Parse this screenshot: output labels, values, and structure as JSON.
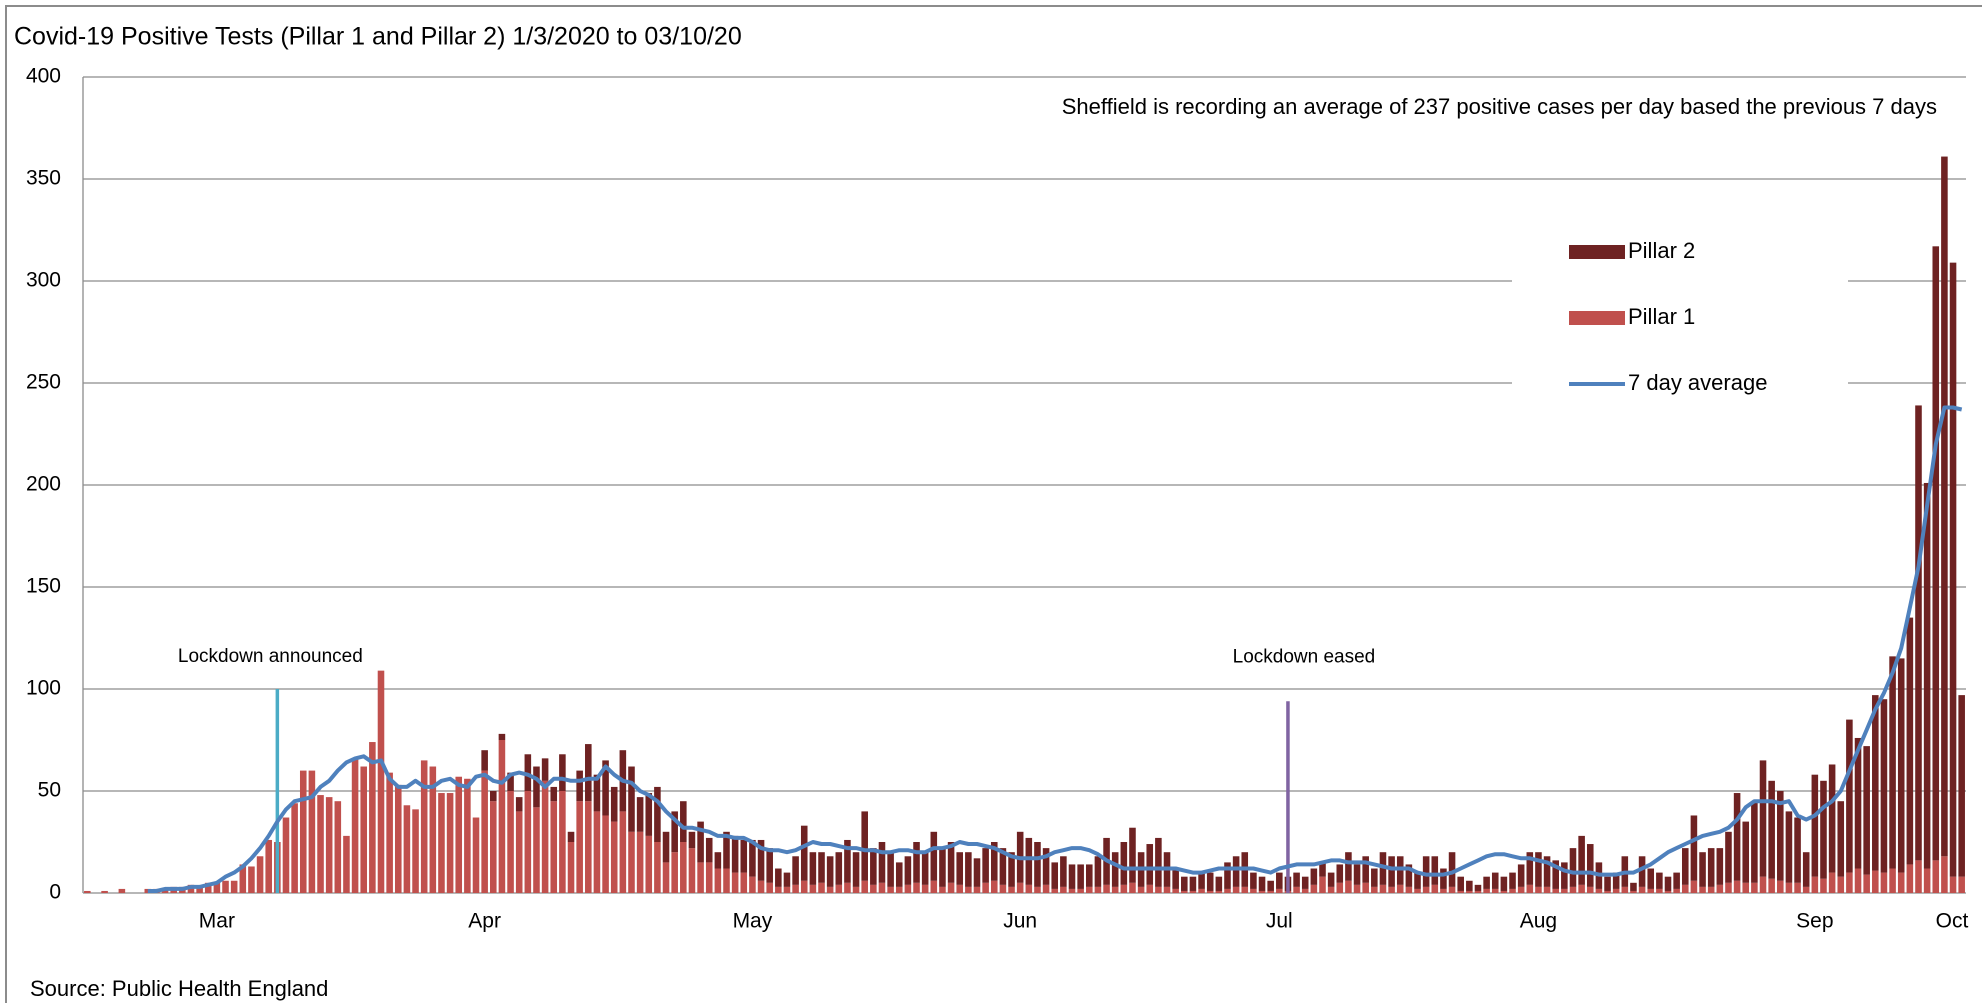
{
  "chart_data": {
    "type": "stacked-bar-line",
    "title": "Covid-19 Positive Tests (Pillar 1 and Pillar 2) 1/3/2020 to 03/10/20",
    "note": "Sheffield is recording an average of 237 positive cases per day based the previous 7 days",
    "source": "Source: Public Health England",
    "ylim": [
      0,
      400
    ],
    "yticks": [
      0,
      50,
      100,
      150,
      200,
      250,
      300,
      350,
      400
    ],
    "grid": true,
    "legend": "upper right",
    "categories": [
      null,
      null,
      null,
      null,
      null,
      null,
      null,
      null,
      null,
      null,
      null,
      null,
      null,
      null,
      null,
      "Mar",
      null,
      null,
      null,
      null,
      null,
      null,
      null,
      null,
      null,
      null,
      null,
      null,
      null,
      null,
      null,
      null,
      null,
      null,
      null,
      null,
      null,
      null,
      null,
      null,
      null,
      null,
      null,
      null,
      null,
      null,
      "Apr",
      null,
      null,
      null,
      null,
      null,
      null,
      null,
      null,
      null,
      null,
      null,
      null,
      null,
      null,
      null,
      null,
      null,
      null,
      null,
      null,
      null,
      null,
      null,
      null,
      null,
      null,
      null,
      null,
      null,
      null,
      "May",
      null,
      null,
      null,
      null,
      null,
      null,
      null,
      null,
      null,
      null,
      null,
      null,
      null,
      null,
      null,
      null,
      null,
      null,
      null,
      null,
      null,
      null,
      null,
      null,
      null,
      null,
      null,
      null,
      null,
      null,
      "Jun",
      null,
      null,
      null,
      null,
      null,
      null,
      null,
      null,
      null,
      null,
      null,
      null,
      null,
      null,
      null,
      null,
      null,
      null,
      null,
      null,
      null,
      null,
      null,
      null,
      null,
      null,
      null,
      null,
      null,
      "Jul",
      null,
      null,
      null,
      null,
      null,
      null,
      null,
      null,
      null,
      null,
      null,
      null,
      null,
      null,
      null,
      null,
      null,
      null,
      null,
      null,
      null,
      null,
      null,
      null,
      null,
      null,
      null,
      null,
      null,
      "Aug",
      null,
      null,
      null,
      null,
      null,
      null,
      null,
      null,
      null,
      null,
      null,
      null,
      null,
      null,
      null,
      null,
      null,
      null,
      null,
      null,
      null,
      null,
      null,
      null,
      null,
      null,
      null,
      null,
      null,
      null,
      null,
      "Sep",
      null,
      null,
      null,
      null,
      null,
      null,
      null,
      null,
      null,
      null,
      null,
      null,
      null,
      null,
      null,
      null,
      "Oct"
    ],
    "series": [
      {
        "name": "Pillar 2",
        "kind": "bar",
        "color": "#6e2222",
        "values": [
          0,
          0,
          0,
          0,
          0,
          0,
          0,
          0,
          0,
          0,
          0,
          0,
          0,
          0,
          0,
          0,
          0,
          0,
          0,
          0,
          0,
          0,
          0,
          0,
          0,
          0,
          0,
          0,
          0,
          0,
          0,
          0,
          0,
          0,
          0,
          0,
          0,
          0,
          0,
          0,
          0,
          0,
          0,
          0,
          0,
          0,
          10,
          5,
          3,
          9,
          7,
          18,
          20,
          11,
          7,
          18,
          5,
          15,
          28,
          18,
          27,
          17,
          30,
          32,
          17,
          21,
          27,
          15,
          20,
          20,
          8,
          20,
          12,
          8,
          18,
          18,
          16,
          18,
          20,
          17,
          9,
          7,
          14,
          27,
          16,
          15,
          15,
          16,
          21,
          17,
          34,
          18,
          20,
          17,
          12,
          14,
          20,
          16,
          24,
          19,
          20,
          16,
          17,
          14,
          17,
          19,
          18,
          17,
          25,
          23,
          22,
          18,
          13,
          15,
          12,
          12,
          11,
          15,
          23,
          17,
          21,
          27,
          17,
          20,
          24,
          17,
          10,
          7,
          7,
          8,
          9,
          7,
          13,
          15,
          17,
          8,
          7,
          5,
          8,
          7,
          7,
          6,
          8,
          7,
          7,
          9,
          14,
          10,
          13,
          9,
          16,
          15,
          14,
          11,
          8,
          15,
          14,
          10,
          17,
          7,
          5,
          3,
          6,
          8,
          7,
          8,
          11,
          16,
          17,
          15,
          14,
          13,
          19,
          24,
          21,
          13,
          7,
          8,
          15,
          4,
          15,
          10,
          8,
          7,
          8,
          18,
          32,
          17,
          19,
          18,
          25,
          43,
          30,
          40,
          57,
          48,
          44,
          35,
          32,
          17,
          50,
          48,
          53,
          37,
          75,
          64,
          63,
          86,
          85,
          104,
          105,
          121,
          223,
          189,
          301,
          343,
          301,
          89
        ]
      },
      {
        "name": "Pillar 1",
        "kind": "bar",
        "color": "#c0504d",
        "values": [
          1,
          0,
          1,
          0,
          2,
          0,
          0,
          2,
          2,
          2,
          3,
          3,
          4,
          3,
          5,
          5,
          6,
          6,
          14,
          13,
          18,
          26,
          25,
          37,
          44,
          60,
          60,
          48,
          47,
          45,
          28,
          66,
          62,
          74,
          109,
          59,
          53,
          43,
          41,
          65,
          62,
          49,
          49,
          57,
          56,
          37,
          60,
          45,
          75,
          50,
          40,
          50,
          42,
          55,
          45,
          50,
          25,
          45,
          45,
          40,
          38,
          35,
          40,
          30,
          30,
          28,
          25,
          15,
          20,
          25,
          22,
          15,
          15,
          12,
          12,
          10,
          10,
          8,
          6,
          5,
          3,
          3,
          4,
          6,
          4,
          5,
          3,
          4,
          5,
          3,
          6,
          4,
          5,
          3,
          3,
          4,
          5,
          4,
          6,
          3,
          5,
          4,
          3,
          3,
          5,
          6,
          4,
          3,
          5,
          4,
          3,
          4,
          2,
          3,
          2,
          2,
          3,
          3,
          4,
          3,
          4,
          5,
          3,
          4,
          3,
          3,
          2,
          1,
          1,
          2,
          1,
          1,
          2,
          3,
          3,
          2,
          1,
          1,
          2,
          1,
          3,
          2,
          4,
          8,
          3,
          5,
          6,
          4,
          5,
          3,
          4,
          3,
          4,
          3,
          2,
          3,
          4,
          2,
          3,
          1,
          1,
          1,
          2,
          2,
          1,
          2,
          3,
          4,
          3,
          3,
          2,
          2,
          3,
          4,
          3,
          2,
          1,
          2,
          3,
          1,
          3,
          2,
          2,
          1,
          2,
          4,
          6,
          3,
          3,
          4,
          5,
          6,
          5,
          5,
          8,
          7,
          6,
          5,
          5,
          3,
          8,
          7,
          10,
          8,
          10,
          12,
          9,
          11,
          10,
          12,
          10,
          14,
          16,
          12,
          16,
          18,
          8,
          8
        ]
      },
      {
        "name": "7 day average",
        "kind": "line",
        "color": "#4f81bd",
        "values": [
          null,
          null,
          null,
          null,
          null,
          null,
          null,
          1,
          1,
          2,
          2,
          2,
          3,
          3,
          4,
          5,
          8,
          10,
          13,
          17,
          22,
          28,
          35,
          41,
          45,
          46,
          47,
          52,
          55,
          60,
          64,
          66,
          67,
          64,
          65,
          56,
          52,
          52,
          55,
          52,
          52,
          55,
          56,
          53,
          52,
          57,
          58,
          55,
          54,
          58,
          59,
          58,
          56,
          52,
          56,
          56,
          55,
          55,
          56,
          56,
          62,
          58,
          55,
          54,
          50,
          48,
          45,
          40,
          36,
          32,
          32,
          31,
          30,
          28,
          28,
          27,
          27,
          25,
          22,
          21,
          21,
          20,
          21,
          23,
          25,
          24,
          24,
          23,
          22,
          22,
          21,
          21,
          20,
          20,
          21,
          21,
          20,
          20,
          22,
          22,
          23,
          25,
          24,
          24,
          23,
          22,
          20,
          18,
          17,
          17,
          17,
          18,
          20,
          21,
          22,
          22,
          21,
          19,
          16,
          14,
          12,
          12,
          12,
          12,
          12,
          12,
          12,
          11,
          10,
          10,
          11,
          12,
          12,
          12,
          12,
          12,
          11,
          10,
          12,
          13,
          14,
          14,
          14,
          15,
          16,
          16,
          15,
          15,
          15,
          14,
          13,
          12,
          12,
          12,
          10,
          9,
          9,
          9,
          10,
          12,
          14,
          16,
          18,
          19,
          19,
          18,
          17,
          17,
          16,
          15,
          13,
          11,
          10,
          10,
          10,
          9,
          9,
          9,
          10,
          10,
          12,
          14,
          17,
          20,
          22,
          24,
          26,
          28,
          29,
          30,
          32,
          36,
          42,
          45,
          45,
          45,
          44,
          45,
          38,
          36,
          38,
          42,
          45,
          50,
          60,
          70,
          80,
          90,
          98,
          108,
          120,
          140,
          160,
          190,
          220,
          238,
          238,
          237
        ]
      }
    ],
    "annotations": [
      {
        "text": "Lockdown announced",
        "at": 22,
        "value": 100,
        "color": "#4bacc6"
      },
      {
        "text": "Lockdown eased",
        "at": 139,
        "value": 94,
        "color": "#8064a2"
      }
    ]
  }
}
